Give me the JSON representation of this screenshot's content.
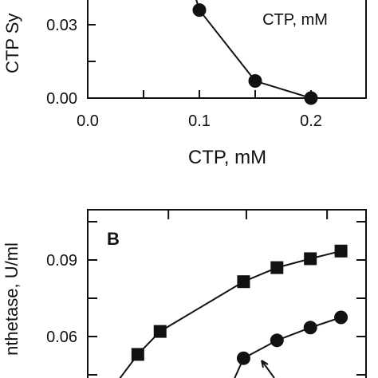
{
  "chart_data": [
    {
      "type": "line",
      "panel": "A (partial, cropped at top)",
      "xlabel": "CTP, mM",
      "ylabel_visible": "CTP Sy",
      "inset_label": "CTP, mM",
      "xlim": [
        0.0,
        0.25
      ],
      "ylim_visible": [
        0.0,
        0.05
      ],
      "x_ticks": [
        "0.0",
        "0.1",
        "0.2"
      ],
      "y_ticks": [
        "0.00",
        "0.03"
      ],
      "series": [
        {
          "marker": "circle",
          "x": [
            0.1,
            0.15,
            0.2
          ],
          "y": [
            0.036,
            0.007,
            0.0
          ]
        }
      ]
    },
    {
      "type": "line",
      "panel_label": "B",
      "ylabel_visible": "nthetase, U/ml",
      "y_ticks": [
        "0.06",
        "0.09"
      ],
      "ylim_visible": [
        0.025,
        0.105
      ],
      "series": [
        {
          "marker": "square",
          "x_rel": [
            0.18,
            0.26,
            0.56,
            0.68,
            0.8,
            0.91
          ],
          "y": [
            0.053,
            0.062,
            0.0815,
            0.087,
            0.0905,
            0.0935
          ]
        },
        {
          "marker": "circle",
          "x_rel": [
            0.56,
            0.68,
            0.8,
            0.91
          ],
          "y": [
            0.0515,
            0.0585,
            0.0635,
            0.0675
          ]
        }
      ]
    }
  ]
}
